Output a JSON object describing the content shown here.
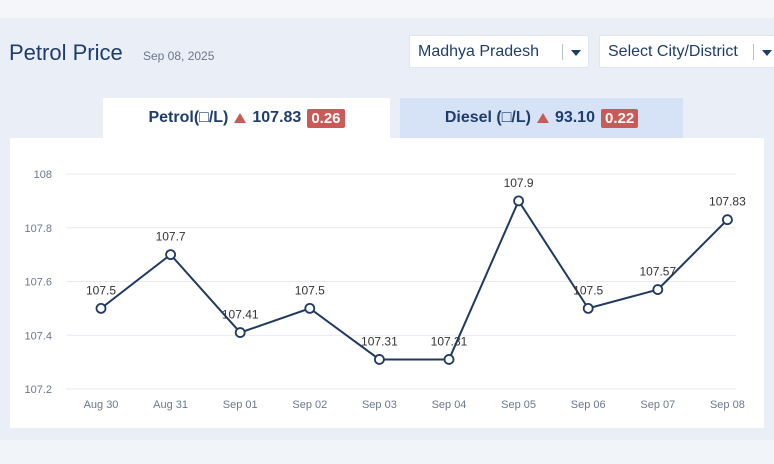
{
  "header": {
    "title": "Petrol Price",
    "date": "Sep 08, 2025",
    "state_select": "Madhya Pradesh",
    "city_select": "Select City/District"
  },
  "tabs": [
    {
      "label": "Petrol(□/L)",
      "price": "107.83",
      "change": "0.26",
      "direction": "up"
    },
    {
      "label": "Diesel (□/L)",
      "price": "93.10",
      "change": "0.22",
      "direction": "up"
    }
  ],
  "colors": {
    "accent": "#1f3d6b",
    "up_arrow": "#c95a57",
    "line": "#203a60",
    "grid": "#e6e9ef"
  },
  "chart_data": {
    "type": "line",
    "title": "",
    "xlabel": "",
    "ylabel": "",
    "categories": [
      "Aug 30",
      "Aug 31",
      "Sep 01",
      "Sep 02",
      "Sep 03",
      "Sep 04",
      "Sep 05",
      "Sep 06",
      "Sep 07",
      "Sep 08"
    ],
    "values": [
      107.5,
      107.7,
      107.41,
      107.5,
      107.31,
      107.31,
      107.9,
      107.5,
      107.57,
      107.83
    ],
    "data_labels": [
      "107.5",
      "107.7",
      "107.41",
      "107.5",
      "107.31",
      "107.31",
      "107.9",
      "107.5",
      "107.57",
      "107.83"
    ],
    "ylim": [
      107.2,
      108
    ],
    "yticks": [
      {
        "value": 108,
        "label": "108"
      },
      {
        "value": 107.8,
        "label": "107.8"
      },
      {
        "value": 107.6,
        "label": "107.6"
      },
      {
        "value": 107.4,
        "label": "107.4"
      },
      {
        "value": 107.2,
        "label": "107.2"
      }
    ],
    "grid": true,
    "legend": "none"
  }
}
